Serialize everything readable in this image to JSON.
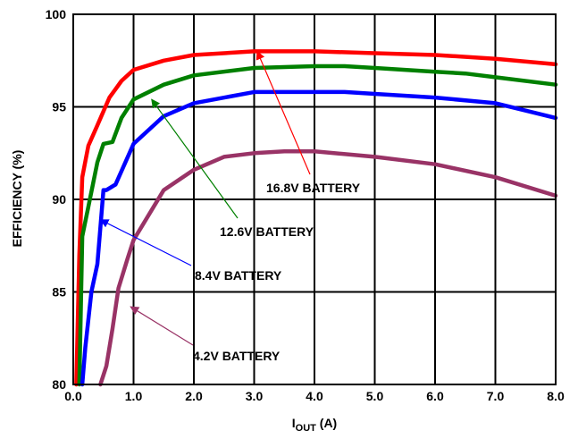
{
  "chart_data": {
    "type": "line",
    "xlabel_main": "I",
    "xlabel_sub": "OUT",
    "xlabel_unit": " (A)",
    "ylabel": "EFFICIENCY (%)",
    "xlim": [
      0,
      8
    ],
    "ylim": [
      80,
      100
    ],
    "grid": true,
    "x_ticks": [
      "0.0",
      "1.0",
      "2.0",
      "3.0",
      "4.0",
      "5.0",
      "6.0",
      "7.0",
      "8.0"
    ],
    "y_ticks": [
      "80",
      "85",
      "90",
      "95",
      "100"
    ],
    "series": [
      {
        "name": "16.8V BATTERY",
        "color": "#ff0000",
        "x": [
          0.05,
          0.1,
          0.15,
          0.25,
          0.4,
          0.6,
          0.8,
          1.0,
          1.5,
          2.0,
          3.0,
          4.0,
          5.0,
          6.0,
          7.0,
          8.0
        ],
        "y": [
          80.0,
          87.0,
          91.2,
          92.9,
          94.0,
          95.5,
          96.4,
          97.0,
          97.5,
          97.8,
          98.0,
          98.0,
          97.9,
          97.8,
          97.6,
          97.3
        ]
      },
      {
        "name": "12.6V BATTERY",
        "color": "#008000",
        "x": [
          0.1,
          0.15,
          0.25,
          0.4,
          0.5,
          0.65,
          0.8,
          1.0,
          1.5,
          2.0,
          3.0,
          4.0,
          4.5,
          5.0,
          6.0,
          6.5,
          7.0,
          8.0
        ],
        "y": [
          80.0,
          88.0,
          89.6,
          92.0,
          93.0,
          93.1,
          94.4,
          95.4,
          96.2,
          96.7,
          97.1,
          97.2,
          97.2,
          97.1,
          96.9,
          96.8,
          96.6,
          96.2
        ]
      },
      {
        "name": "8.4V BATTERY",
        "color": "#0000ff",
        "x": [
          0.15,
          0.2,
          0.3,
          0.4,
          0.5,
          0.55,
          0.7,
          1.0,
          1.5,
          2.0,
          3.0,
          4.0,
          4.5,
          5.0,
          6.0,
          7.0,
          8.0
        ],
        "y": [
          80.0,
          82.0,
          85.0,
          86.5,
          90.5,
          90.5,
          90.8,
          93.0,
          94.5,
          95.2,
          95.8,
          95.8,
          95.8,
          95.7,
          95.5,
          95.2,
          94.4
        ]
      },
      {
        "name": "4.2V BATTERY",
        "color": "#993366",
        "x": [
          0.45,
          0.55,
          0.65,
          0.75,
          0.9,
          1.0,
          1.5,
          2.0,
          2.5,
          3.0,
          3.5,
          4.0,
          5.0,
          6.0,
          7.0,
          8.0
        ],
        "y": [
          80.0,
          81.0,
          83.0,
          85.2,
          86.8,
          87.8,
          90.5,
          91.6,
          92.3,
          92.5,
          92.6,
          92.6,
          92.3,
          91.9,
          91.2,
          90.2
        ]
      }
    ],
    "annotations": [
      {
        "text": "16.8V BATTERY",
        "target": [
          3.05,
          98.0
        ]
      },
      {
        "text": "12.6V BATTERY",
        "target": [
          1.3,
          95.4
        ]
      },
      {
        "text": "8.4V BATTERY",
        "target": [
          0.45,
          88.9
        ]
      },
      {
        "text": "4.2V BATTERY",
        "target": [
          0.95,
          84.2
        ]
      }
    ]
  }
}
